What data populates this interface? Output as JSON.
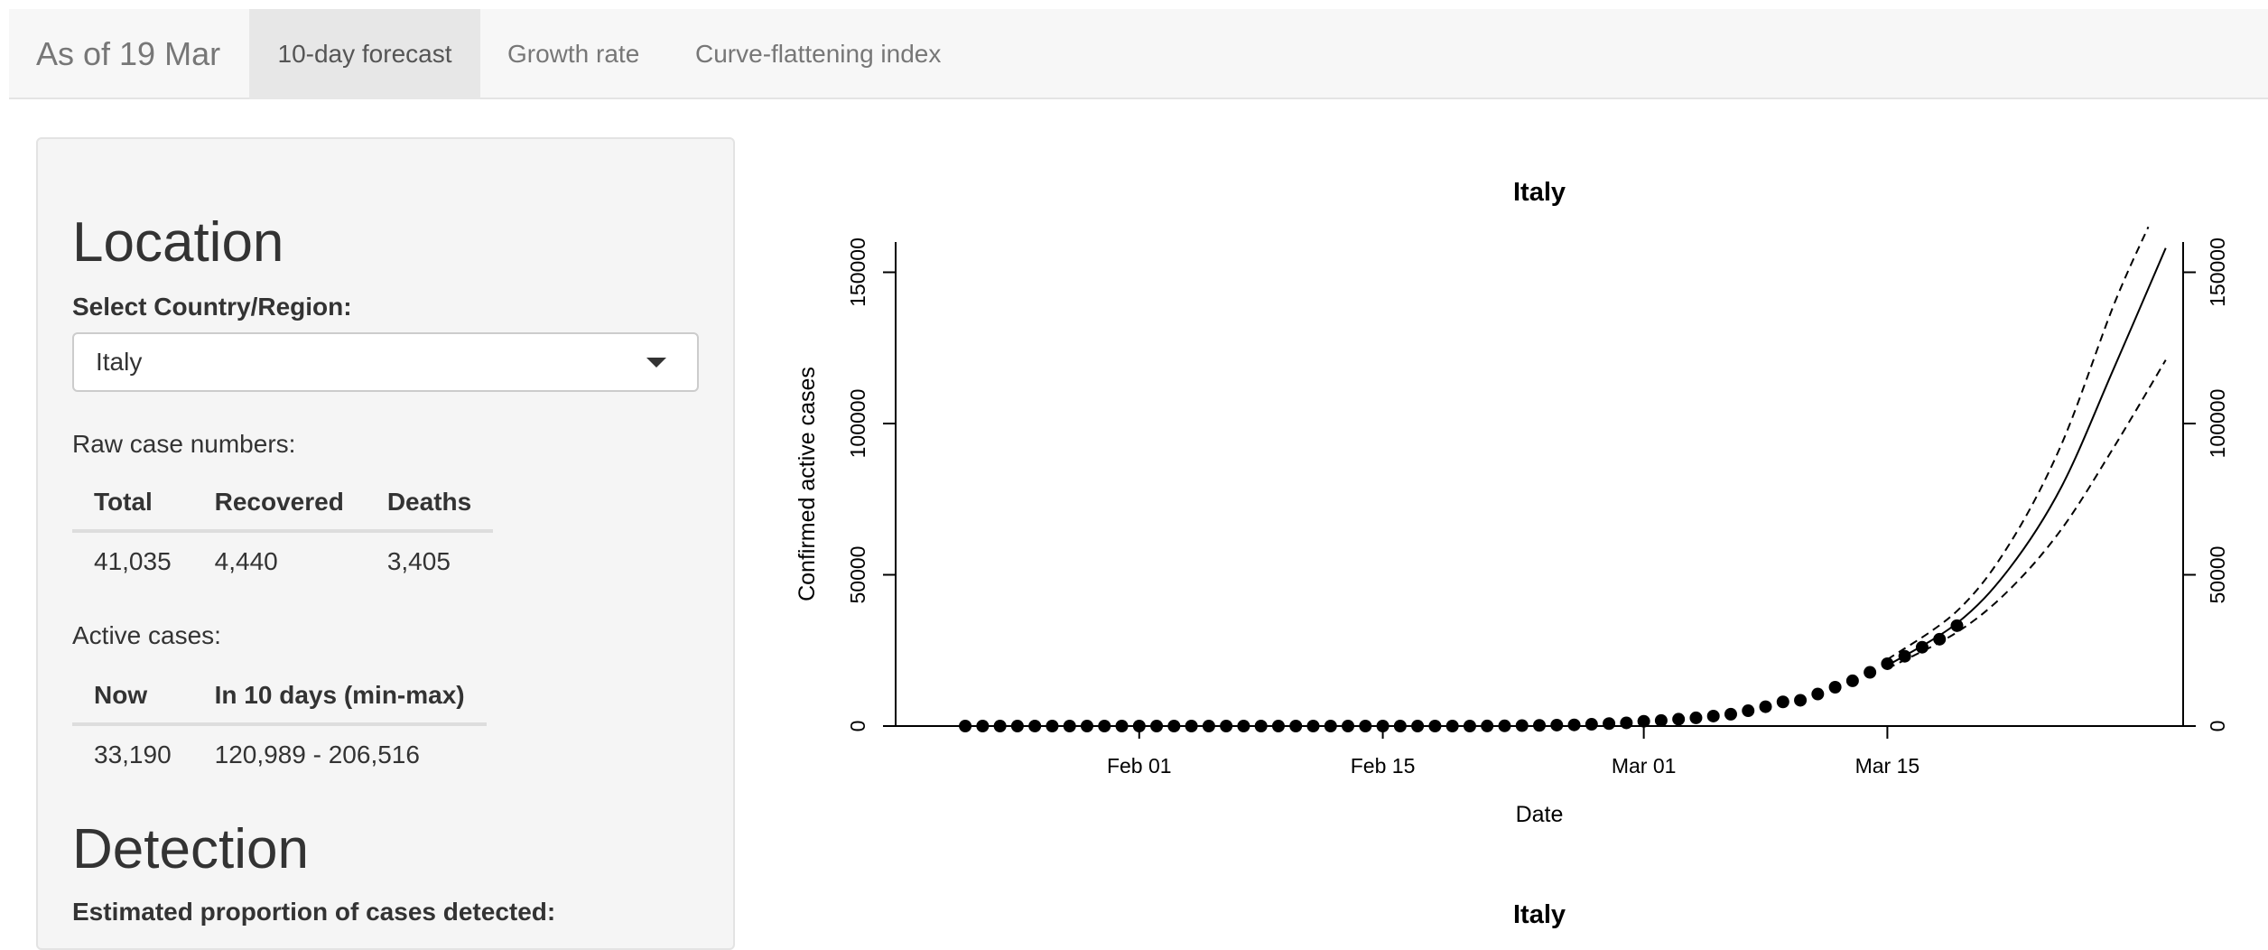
{
  "navbar": {
    "brand": "As of 19 Mar",
    "tabs": [
      {
        "label": "10-day forecast",
        "active": true
      },
      {
        "label": "Growth rate",
        "active": false
      },
      {
        "label": "Curve-flattening index",
        "active": false
      }
    ]
  },
  "sidebar": {
    "location_heading": "Location",
    "select_label": "Select Country/Region:",
    "select_value": "Italy",
    "raw_heading": "Raw case numbers:",
    "raw_table": {
      "headers": [
        "Total",
        "Recovered",
        "Deaths"
      ],
      "row": [
        "41,035",
        "4,440",
        "3,405"
      ]
    },
    "active_heading": "Active cases:",
    "active_table": {
      "headers": [
        "Now",
        "In 10 days (min-max)"
      ],
      "row": [
        "33,190",
        "120,989 - 206,516"
      ]
    },
    "detection_heading": "Detection",
    "detection_label": "Estimated proportion of cases detected:"
  },
  "chart_data": [
    {
      "type": "scatter",
      "title": "Italy",
      "xlabel": "Date",
      "ylabel": "Confirmed active cases",
      "x_ticks": [
        "Feb 01",
        "Feb 15",
        "Mar 01",
        "Mar 15"
      ],
      "y_ticks": [
        "0",
        "50000",
        "100000",
        "150000"
      ],
      "ylim": [
        0,
        160000
      ],
      "xlim": [
        "2020-01-18",
        "2020-04-01"
      ],
      "series": [
        {
          "style": "points",
          "x": [
            "2020-01-22",
            "2020-01-23",
            "2020-01-24",
            "2020-01-25",
            "2020-01-26",
            "2020-01-27",
            "2020-01-28",
            "2020-01-29",
            "2020-01-30",
            "2020-01-31",
            "2020-02-01",
            "2020-02-02",
            "2020-02-03",
            "2020-02-04",
            "2020-02-05",
            "2020-02-06",
            "2020-02-07",
            "2020-02-08",
            "2020-02-09",
            "2020-02-10",
            "2020-02-11",
            "2020-02-12",
            "2020-02-13",
            "2020-02-14",
            "2020-02-15",
            "2020-02-16",
            "2020-02-17",
            "2020-02-18",
            "2020-02-19",
            "2020-02-20",
            "2020-02-21",
            "2020-02-22",
            "2020-02-23",
            "2020-02-24",
            "2020-02-25",
            "2020-02-26",
            "2020-02-27",
            "2020-02-28",
            "2020-02-29",
            "2020-03-01",
            "2020-03-02",
            "2020-03-03",
            "2020-03-04",
            "2020-03-05",
            "2020-03-06",
            "2020-03-07",
            "2020-03-08",
            "2020-03-09",
            "2020-03-10",
            "2020-03-11",
            "2020-03-12",
            "2020-03-13",
            "2020-03-14",
            "2020-03-15",
            "2020-03-16",
            "2020-03-17",
            "2020-03-18",
            "2020-03-19"
          ],
          "y": [
            0,
            0,
            0,
            0,
            0,
            0,
            0,
            0,
            0,
            2,
            2,
            2,
            2,
            2,
            2,
            2,
            3,
            3,
            3,
            3,
            3,
            3,
            3,
            3,
            3,
            3,
            3,
            3,
            3,
            3,
            20,
            62,
            150,
            221,
            311,
            385,
            588,
            821,
            1049,
            1577,
            1835,
            2263,
            2706,
            3296,
            3916,
            5061,
            6387,
            7985,
            8514,
            10590,
            12839,
            14955,
            17750,
            20603,
            23073,
            26062,
            28710,
            33190
          ]
        },
        {
          "style": "solid",
          "x": [
            "2020-03-15",
            "2020-03-19",
            "2020-03-22",
            "2020-03-25",
            "2020-03-28",
            "2020-03-31"
          ],
          "y": [
            20000,
            34000,
            52000,
            79000,
            118000,
            158000
          ]
        },
        {
          "style": "dashed",
          "x": [
            "2020-03-15",
            "2020-03-19",
            "2020-03-22",
            "2020-03-25",
            "2020-03-28",
            "2020-03-30"
          ],
          "y": [
            22000,
            38000,
            60000,
            93000,
            139000,
            165000
          ]
        },
        {
          "style": "dashed",
          "x": [
            "2020-03-15",
            "2020-03-19",
            "2020-03-22",
            "2020-03-25",
            "2020-03-28",
            "2020-03-31"
          ],
          "y": [
            19000,
            31000,
            45000,
            65000,
            92000,
            121000
          ]
        }
      ]
    },
    {
      "type": "scatter",
      "title": "Italy"
    }
  ]
}
